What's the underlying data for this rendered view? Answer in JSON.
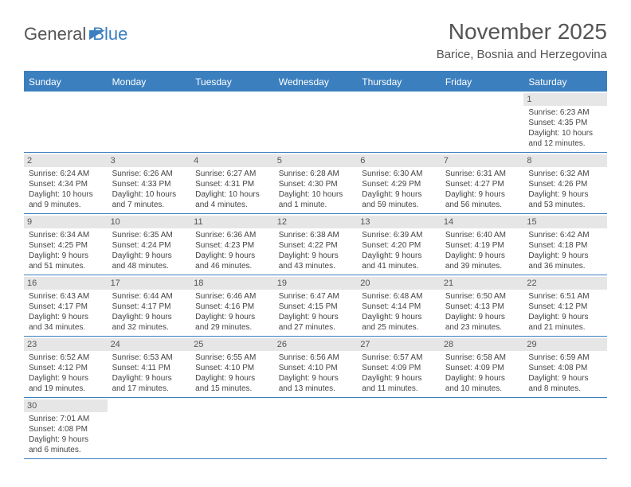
{
  "logo": {
    "text1": "General",
    "text2": "Blue"
  },
  "title": "November 2025",
  "subtitle": "Barice, Bosnia and Herzegovina",
  "colors": {
    "accent": "#3b7fbf",
    "dayheader_bg": "#e6e6e6",
    "text": "#444444",
    "title": "#555555"
  },
  "day_names": [
    "Sunday",
    "Monday",
    "Tuesday",
    "Wednesday",
    "Thursday",
    "Friday",
    "Saturday"
  ],
  "weeks": [
    [
      null,
      null,
      null,
      null,
      null,
      null,
      {
        "d": "1",
        "sr": "Sunrise: 6:23 AM",
        "ss": "Sunset: 4:35 PM",
        "dl1": "Daylight: 10 hours",
        "dl2": "and 12 minutes."
      }
    ],
    [
      {
        "d": "2",
        "sr": "Sunrise: 6:24 AM",
        "ss": "Sunset: 4:34 PM",
        "dl1": "Daylight: 10 hours",
        "dl2": "and 9 minutes."
      },
      {
        "d": "3",
        "sr": "Sunrise: 6:26 AM",
        "ss": "Sunset: 4:33 PM",
        "dl1": "Daylight: 10 hours",
        "dl2": "and 7 minutes."
      },
      {
        "d": "4",
        "sr": "Sunrise: 6:27 AM",
        "ss": "Sunset: 4:31 PM",
        "dl1": "Daylight: 10 hours",
        "dl2": "and 4 minutes."
      },
      {
        "d": "5",
        "sr": "Sunrise: 6:28 AM",
        "ss": "Sunset: 4:30 PM",
        "dl1": "Daylight: 10 hours",
        "dl2": "and 1 minute."
      },
      {
        "d": "6",
        "sr": "Sunrise: 6:30 AM",
        "ss": "Sunset: 4:29 PM",
        "dl1": "Daylight: 9 hours",
        "dl2": "and 59 minutes."
      },
      {
        "d": "7",
        "sr": "Sunrise: 6:31 AM",
        "ss": "Sunset: 4:27 PM",
        "dl1": "Daylight: 9 hours",
        "dl2": "and 56 minutes."
      },
      {
        "d": "8",
        "sr": "Sunrise: 6:32 AM",
        "ss": "Sunset: 4:26 PM",
        "dl1": "Daylight: 9 hours",
        "dl2": "and 53 minutes."
      }
    ],
    [
      {
        "d": "9",
        "sr": "Sunrise: 6:34 AM",
        "ss": "Sunset: 4:25 PM",
        "dl1": "Daylight: 9 hours",
        "dl2": "and 51 minutes."
      },
      {
        "d": "10",
        "sr": "Sunrise: 6:35 AM",
        "ss": "Sunset: 4:24 PM",
        "dl1": "Daylight: 9 hours",
        "dl2": "and 48 minutes."
      },
      {
        "d": "11",
        "sr": "Sunrise: 6:36 AM",
        "ss": "Sunset: 4:23 PM",
        "dl1": "Daylight: 9 hours",
        "dl2": "and 46 minutes."
      },
      {
        "d": "12",
        "sr": "Sunrise: 6:38 AM",
        "ss": "Sunset: 4:22 PM",
        "dl1": "Daylight: 9 hours",
        "dl2": "and 43 minutes."
      },
      {
        "d": "13",
        "sr": "Sunrise: 6:39 AM",
        "ss": "Sunset: 4:20 PM",
        "dl1": "Daylight: 9 hours",
        "dl2": "and 41 minutes."
      },
      {
        "d": "14",
        "sr": "Sunrise: 6:40 AM",
        "ss": "Sunset: 4:19 PM",
        "dl1": "Daylight: 9 hours",
        "dl2": "and 39 minutes."
      },
      {
        "d": "15",
        "sr": "Sunrise: 6:42 AM",
        "ss": "Sunset: 4:18 PM",
        "dl1": "Daylight: 9 hours",
        "dl2": "and 36 minutes."
      }
    ],
    [
      {
        "d": "16",
        "sr": "Sunrise: 6:43 AM",
        "ss": "Sunset: 4:17 PM",
        "dl1": "Daylight: 9 hours",
        "dl2": "and 34 minutes."
      },
      {
        "d": "17",
        "sr": "Sunrise: 6:44 AM",
        "ss": "Sunset: 4:17 PM",
        "dl1": "Daylight: 9 hours",
        "dl2": "and 32 minutes."
      },
      {
        "d": "18",
        "sr": "Sunrise: 6:46 AM",
        "ss": "Sunset: 4:16 PM",
        "dl1": "Daylight: 9 hours",
        "dl2": "and 29 minutes."
      },
      {
        "d": "19",
        "sr": "Sunrise: 6:47 AM",
        "ss": "Sunset: 4:15 PM",
        "dl1": "Daylight: 9 hours",
        "dl2": "and 27 minutes."
      },
      {
        "d": "20",
        "sr": "Sunrise: 6:48 AM",
        "ss": "Sunset: 4:14 PM",
        "dl1": "Daylight: 9 hours",
        "dl2": "and 25 minutes."
      },
      {
        "d": "21",
        "sr": "Sunrise: 6:50 AM",
        "ss": "Sunset: 4:13 PM",
        "dl1": "Daylight: 9 hours",
        "dl2": "and 23 minutes."
      },
      {
        "d": "22",
        "sr": "Sunrise: 6:51 AM",
        "ss": "Sunset: 4:12 PM",
        "dl1": "Daylight: 9 hours",
        "dl2": "and 21 minutes."
      }
    ],
    [
      {
        "d": "23",
        "sr": "Sunrise: 6:52 AM",
        "ss": "Sunset: 4:12 PM",
        "dl1": "Daylight: 9 hours",
        "dl2": "and 19 minutes."
      },
      {
        "d": "24",
        "sr": "Sunrise: 6:53 AM",
        "ss": "Sunset: 4:11 PM",
        "dl1": "Daylight: 9 hours",
        "dl2": "and 17 minutes."
      },
      {
        "d": "25",
        "sr": "Sunrise: 6:55 AM",
        "ss": "Sunset: 4:10 PM",
        "dl1": "Daylight: 9 hours",
        "dl2": "and 15 minutes."
      },
      {
        "d": "26",
        "sr": "Sunrise: 6:56 AM",
        "ss": "Sunset: 4:10 PM",
        "dl1": "Daylight: 9 hours",
        "dl2": "and 13 minutes."
      },
      {
        "d": "27",
        "sr": "Sunrise: 6:57 AM",
        "ss": "Sunset: 4:09 PM",
        "dl1": "Daylight: 9 hours",
        "dl2": "and 11 minutes."
      },
      {
        "d": "28",
        "sr": "Sunrise: 6:58 AM",
        "ss": "Sunset: 4:09 PM",
        "dl1": "Daylight: 9 hours",
        "dl2": "and 10 minutes."
      },
      {
        "d": "29",
        "sr": "Sunrise: 6:59 AM",
        "ss": "Sunset: 4:08 PM",
        "dl1": "Daylight: 9 hours",
        "dl2": "and 8 minutes."
      }
    ],
    [
      {
        "d": "30",
        "sr": "Sunrise: 7:01 AM",
        "ss": "Sunset: 4:08 PM",
        "dl1": "Daylight: 9 hours",
        "dl2": "and 6 minutes."
      },
      null,
      null,
      null,
      null,
      null,
      null
    ]
  ]
}
